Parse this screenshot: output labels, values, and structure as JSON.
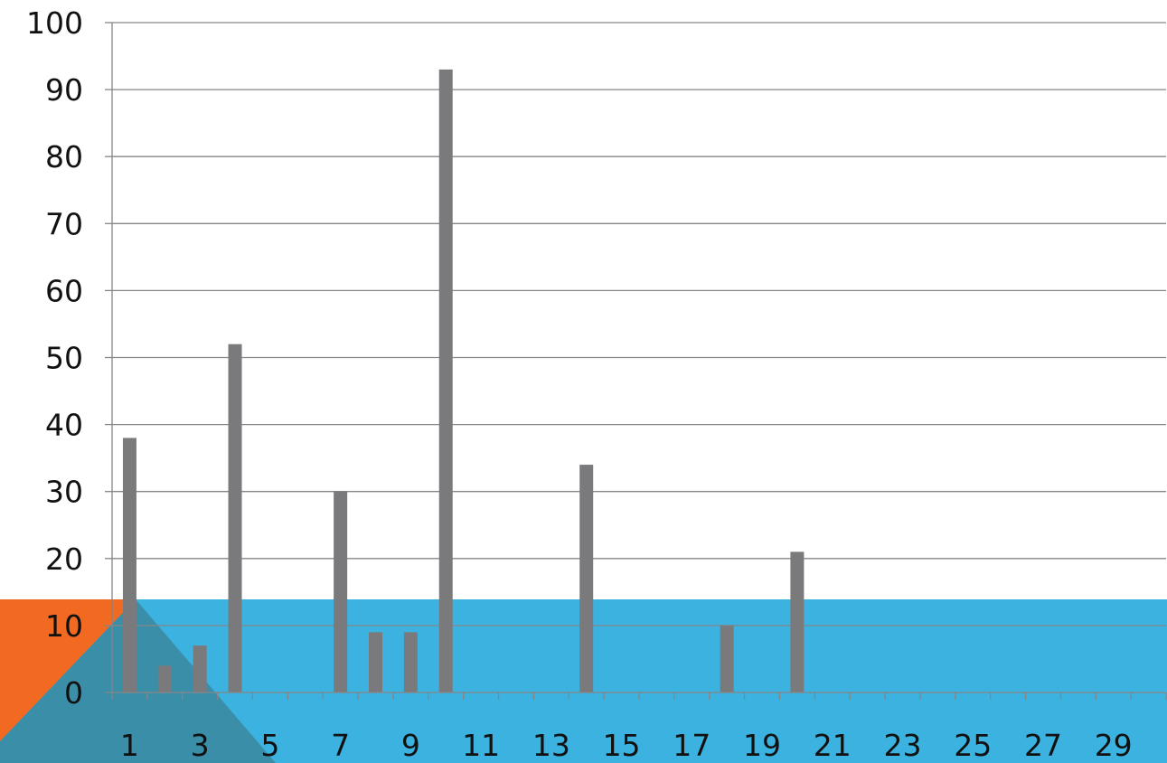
{
  "colors": {
    "bar": "#7a7a7c",
    "band": "#3bb2e0",
    "accent": "#f26a21",
    "band_shadow": "#3a8ea8",
    "grid": "#868686"
  },
  "chart_data": {
    "type": "bar",
    "title": "",
    "xlabel": "",
    "ylabel": "",
    "categories": [
      1,
      2,
      3,
      4,
      5,
      6,
      7,
      8,
      9,
      10,
      11,
      12,
      13,
      14,
      15,
      16,
      17,
      18,
      19,
      20,
      21,
      22,
      23,
      24,
      25,
      26,
      27,
      28,
      29,
      30
    ],
    "x_tick_labels": [
      "1",
      "3",
      "5",
      "7",
      "9",
      "11",
      "13",
      "15",
      "17",
      "19",
      "21",
      "23",
      "25",
      "27",
      "29"
    ],
    "y_tick_labels": [
      "0",
      "10",
      "20",
      "30",
      "40",
      "50",
      "60",
      "70",
      "80",
      "90",
      "100"
    ],
    "ylim": [
      0,
      100
    ],
    "y_major_step": 10,
    "grid": true,
    "legend": "none",
    "series": [
      {
        "values": [
          38,
          4,
          7,
          52,
          0,
          0,
          30,
          9,
          9,
          93,
          0,
          0,
          0,
          34,
          0,
          0,
          0,
          10,
          0,
          21,
          0,
          0,
          0,
          0,
          0,
          0,
          0,
          0,
          0,
          0
        ]
      }
    ]
  }
}
